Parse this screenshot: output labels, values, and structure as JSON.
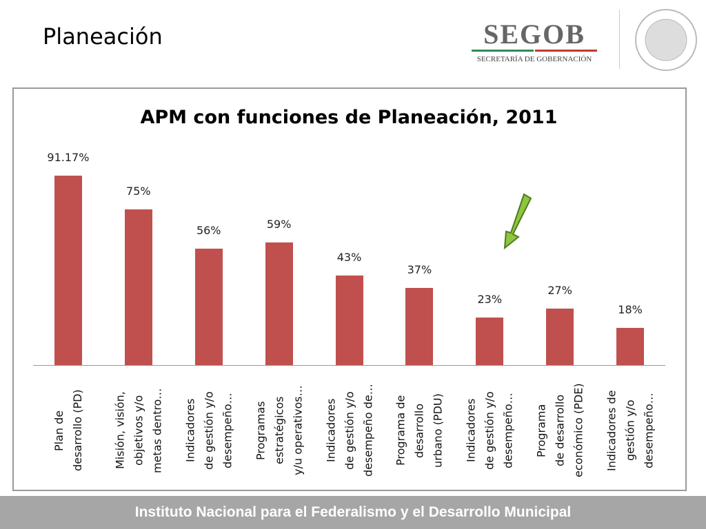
{
  "slide_title": "Planeación",
  "logo": {
    "name": "SEGOB",
    "subtitle": "SECRETARÍA DE GOBERNACIÓN"
  },
  "footer": "Instituto Nacional para el Federalismo y el Desarrollo Municipal",
  "chart_data": {
    "type": "bar",
    "title": "APM con funciones de Planeación, 2011",
    "categories": [
      "Plan de\ndesarrollo (PD)",
      "Misión, visión,\nobjetivos y/o\nmetas dentro…",
      "Indicadores\nde gestión y/o\ndesempeño…",
      "Programas\nestratégicos\ny/u operativos…",
      "Indicadores\nde gestión y/o\ndesempeño de…",
      "Programa de\ndesarrollo\nurbano (PDU)",
      "Indicadores\nde gestión y/o\ndesempeño…",
      "Programa\nde desarrollo\neconómico (PDE)",
      "Indicadores de\ngestión y/o\ndesempeño…"
    ],
    "values": [
      91.17,
      75,
      56,
      59,
      43,
      37,
      23,
      27,
      18
    ],
    "value_labels": [
      "91.17%",
      "75%",
      "56%",
      "59%",
      "43%",
      "37%",
      "23%",
      "27%",
      "18%"
    ],
    "color": "#c0504d",
    "ylim": [
      0,
      100
    ]
  }
}
